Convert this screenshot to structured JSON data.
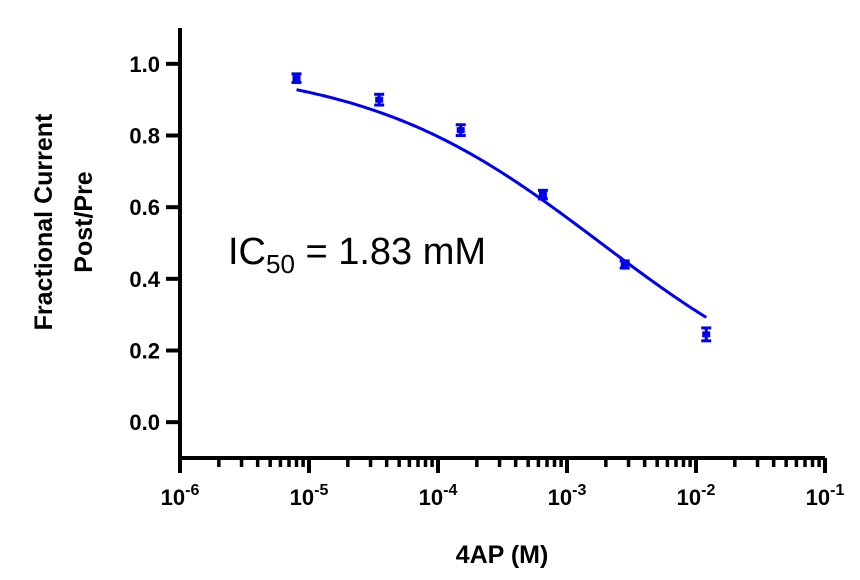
{
  "chart_data": {
    "type": "scatter",
    "xlabel": "4AP (M)",
    "ylabel_lines": [
      "Fractional Current",
      "Post/Pre"
    ],
    "x_scale": "log10",
    "xlim": [
      1e-06,
      0.1
    ],
    "ylim": [
      -0.1,
      1.1
    ],
    "x_tick_labels": [
      {
        "value": 1e-06,
        "base": "10",
        "exp": "-6"
      },
      {
        "value": 1e-05,
        "base": "10",
        "exp": "-5"
      },
      {
        "value": 0.0001,
        "base": "10",
        "exp": "-4"
      },
      {
        "value": 0.001,
        "base": "10",
        "exp": "-3"
      },
      {
        "value": 0.01,
        "base": "10",
        "exp": "-2"
      },
      {
        "value": 0.1,
        "base": "10",
        "exp": "-1"
      }
    ],
    "y_ticks": [
      0.0,
      0.2,
      0.4,
      0.6,
      0.8,
      1.0
    ],
    "y_tick_labels": [
      "0.0",
      "0.2",
      "0.4",
      "0.6",
      "0.8",
      "1.0"
    ],
    "series": [
      {
        "color": "#0000ee",
        "points": [
          {
            "x": 8e-06,
            "y": 0.96,
            "err": 0.012
          },
          {
            "x": 3.5e-05,
            "y": 0.9,
            "err": 0.015
          },
          {
            "x": 0.00015,
            "y": 0.815,
            "err": 0.015
          },
          {
            "x": 0.00065,
            "y": 0.635,
            "err": 0.012
          },
          {
            "x": 0.0028,
            "y": 0.44,
            "err": 0.01
          },
          {
            "x": 0.012,
            "y": 0.245,
            "err": 0.018
          }
        ],
        "fit": {
          "model": "logistic",
          "top": 1.0,
          "bottom": 0.0,
          "ic50": 0.00183,
          "hill": 0.47,
          "x_range": [
            8e-06,
            0.012
          ]
        }
      }
    ],
    "annotation": {
      "prefix": "IC",
      "subscript": "50",
      "suffix": " = 1.83 mM"
    }
  }
}
